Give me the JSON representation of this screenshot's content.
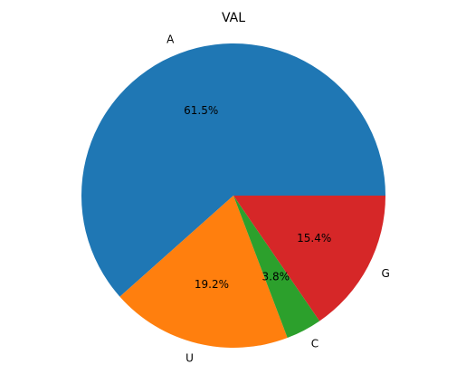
{
  "chart_data": {
    "type": "pie",
    "title": "VAL",
    "labels": [
      "A",
      "U",
      "C",
      "G"
    ],
    "values": [
      61.5,
      19.2,
      3.8,
      15.4
    ],
    "autopct": [
      "61.5%",
      "19.2%",
      "3.8%",
      "15.4%"
    ],
    "colors": [
      "#1f77b4",
      "#ff7f0e",
      "#2ca02c",
      "#d62728"
    ],
    "start_angle_deg": 0,
    "direction": "counterclockwise"
  }
}
